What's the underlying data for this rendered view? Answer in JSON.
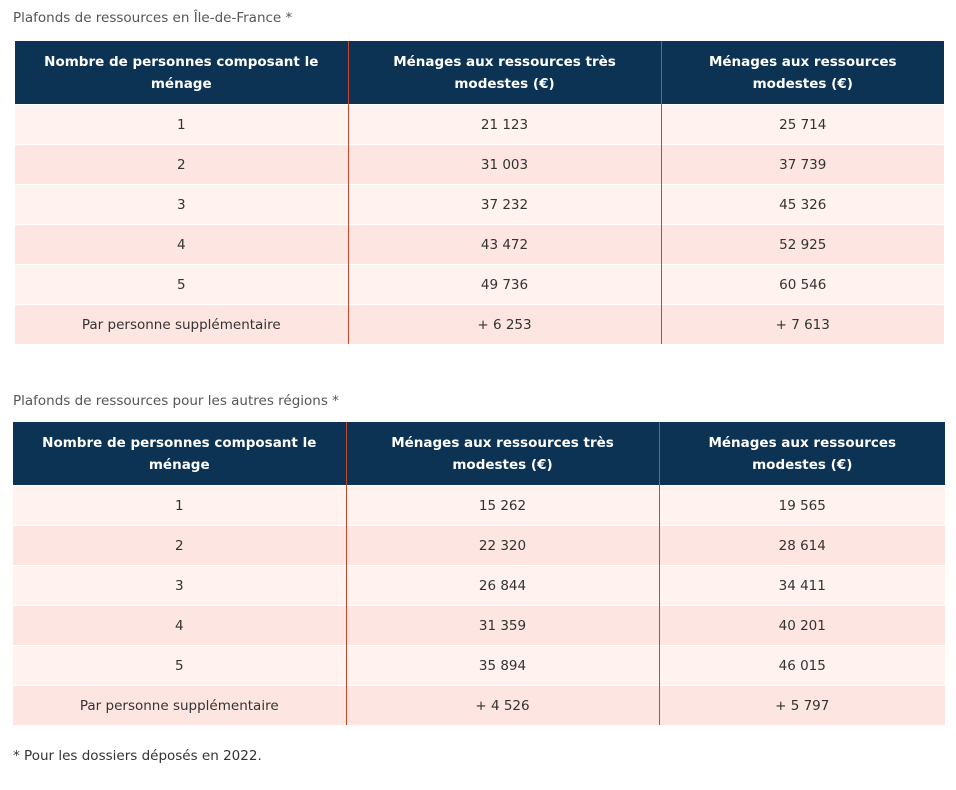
{
  "tables": [
    {
      "caption": "Plafonds de ressources en Île-de-France *",
      "headers": [
        "Nombre de personnes composant le ménage",
        "Ménages aux ressources très modestes (€)",
        "Ménages aux ressources modestes (€)"
      ],
      "rows": [
        [
          "1",
          "21 123",
          "25 714"
        ],
        [
          "2",
          "31 003",
          "37 739"
        ],
        [
          "3",
          "37 232",
          "45 326"
        ],
        [
          "4",
          "43 472",
          "52 925"
        ],
        [
          "5",
          "49 736",
          "60 546"
        ],
        [
          "Par personne supplémentaire",
          "+ 6 253",
          "+ 7 613"
        ]
      ]
    },
    {
      "caption": "Plafonds de ressources pour les autres régions *",
      "headers": [
        "Nombre de personnes composant le ménage",
        "Ménages aux ressources très modestes (€)",
        "Ménages aux ressources modestes (€)"
      ],
      "rows": [
        [
          "1",
          "15 262",
          "19 565"
        ],
        [
          "2",
          "22 320",
          "28 614"
        ],
        [
          "3",
          "26 844",
          "34 411"
        ],
        [
          "4",
          "31 359",
          "40 201"
        ],
        [
          "5",
          "35 894",
          "46 015"
        ],
        [
          "Par personne supplémentaire",
          "+ 4 526",
          "+ 5 797"
        ]
      ]
    }
  ],
  "footnote": "* Pour les dossiers déposés en 2022.",
  "colors": {
    "header_bg": "#0c3354",
    "row_light": "#fff2ef",
    "row_dark": "#fde6e1",
    "divider": "#c4492e"
  }
}
